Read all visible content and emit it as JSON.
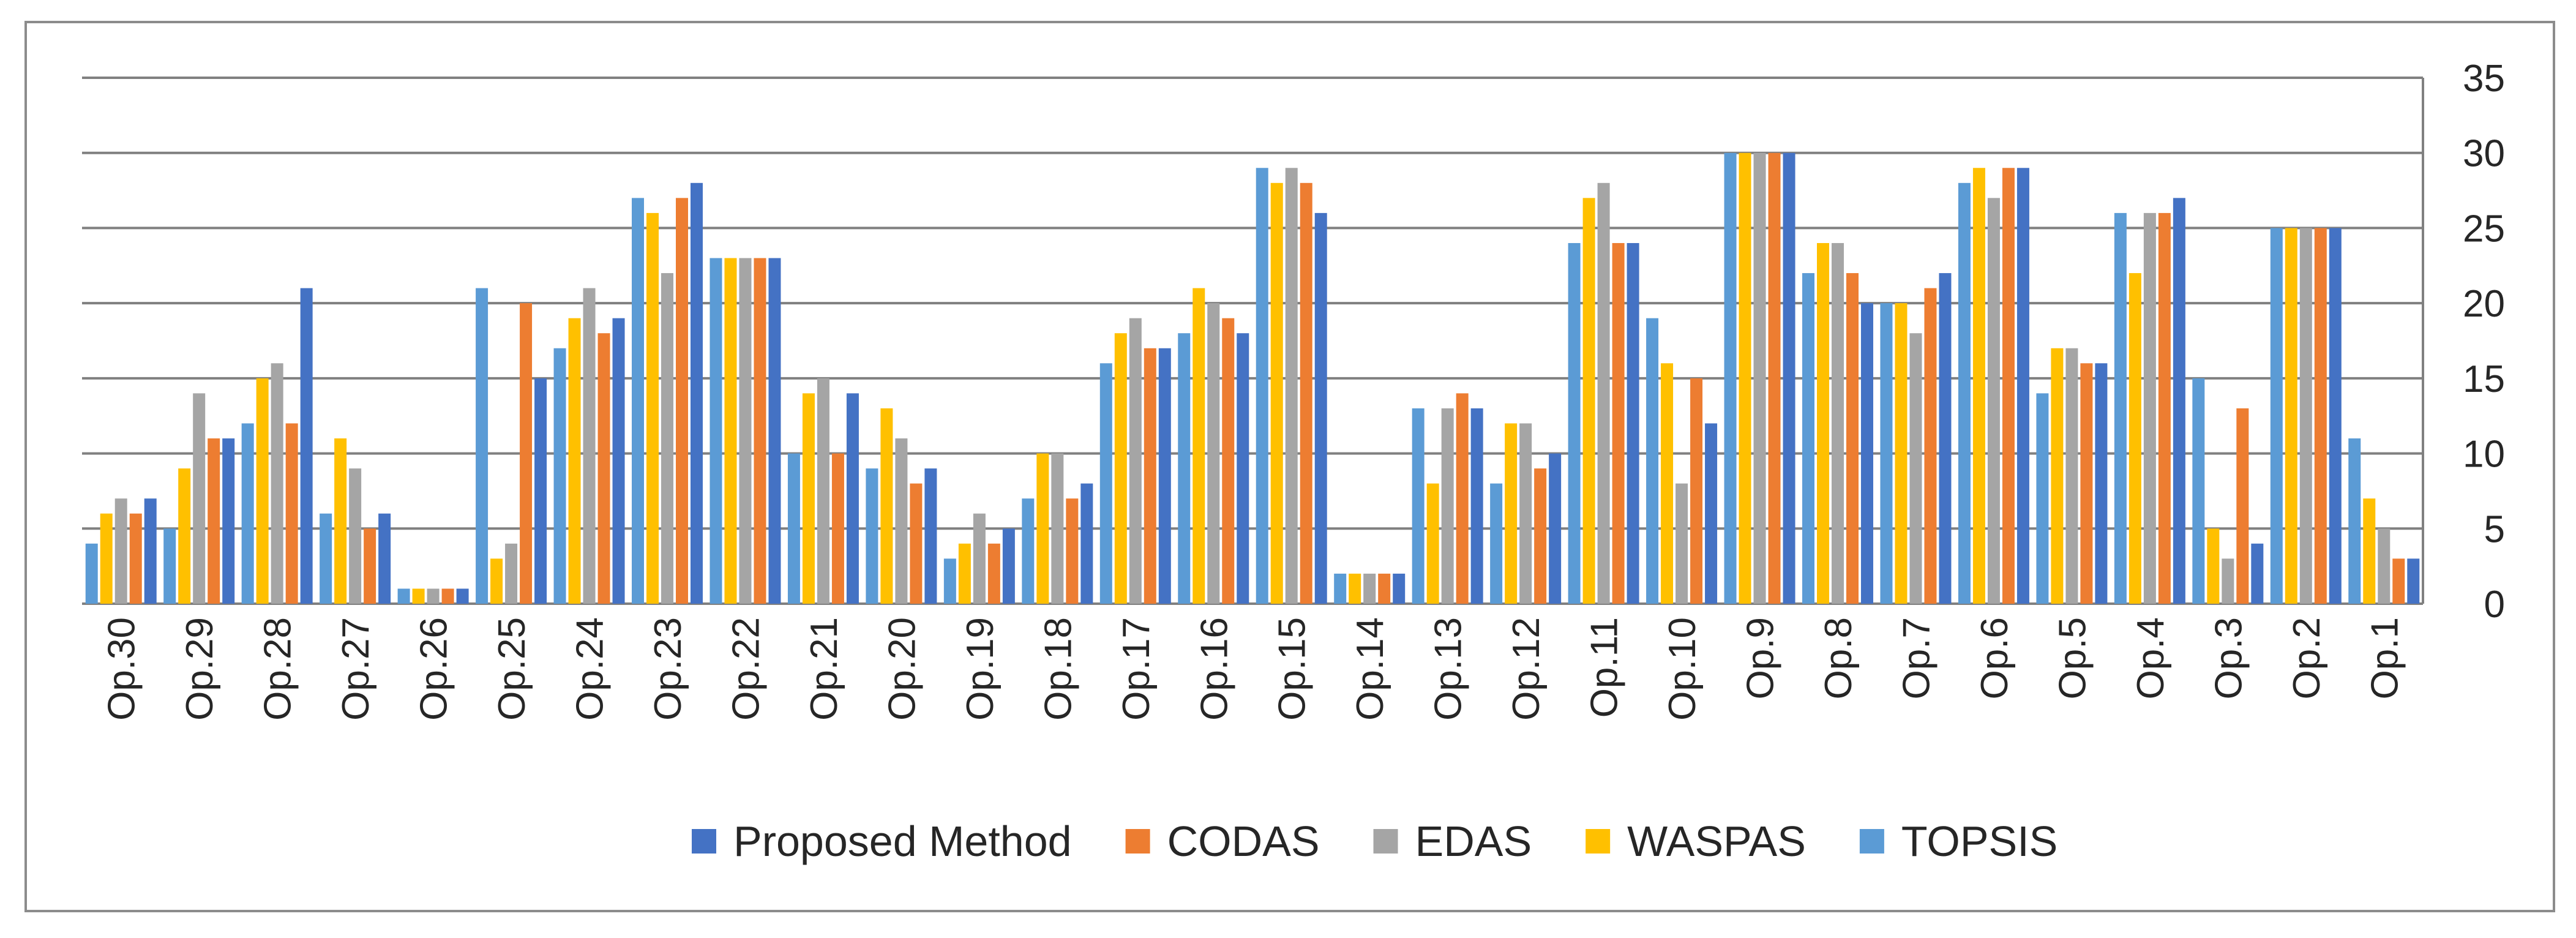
{
  "chart_data": {
    "type": "bar",
    "title": "",
    "xlabel": "",
    "ylabel": "",
    "ylim": [
      0,
      35
    ],
    "y_ticks": [
      "0",
      "5",
      "10",
      "15",
      "20",
      "25",
      "30",
      "35"
    ],
    "y_axis_side": "right",
    "grid": true,
    "legend_position": "bottom",
    "categories": [
      "Op.30",
      "Op.29",
      "Op.28",
      "Op.27",
      "Op.26",
      "Op.25",
      "Op.24",
      "Op.23",
      "Op.22",
      "Op.21",
      "Op.20",
      "Op.19",
      "Op.18",
      "Op.17",
      "Op.16",
      "Op.15",
      "Op.14",
      "Op.13",
      "Op.12",
      "Op.11",
      "Op.10",
      "Op.9",
      "Op.8",
      "Op.7",
      "Op.6",
      "Op.5",
      "Op.4",
      "Op.3",
      "Op.2",
      "Op.1"
    ],
    "series": [
      {
        "name": "TOPSIS",
        "color": "#5B9BD5",
        "values": [
          4,
          5,
          12,
          6,
          1,
          21,
          17,
          27,
          23,
          10,
          9,
          3,
          7,
          16,
          18,
          29,
          2,
          13,
          8,
          24,
          19,
          30,
          22,
          20,
          28,
          14,
          26,
          15,
          25,
          11
        ]
      },
      {
        "name": "WASPAS",
        "color": "#FFC000",
        "values": [
          6,
          9,
          15,
          11,
          1,
          3,
          19,
          26,
          23,
          14,
          13,
          4,
          10,
          18,
          21,
          28,
          2,
          8,
          12,
          27,
          16,
          30,
          24,
          20,
          29,
          17,
          22,
          5,
          25,
          7
        ]
      },
      {
        "name": "EDAS",
        "color": "#A5A5A5",
        "values": [
          7,
          14,
          16,
          9,
          1,
          4,
          21,
          22,
          23,
          15,
          11,
          6,
          10,
          19,
          20,
          29,
          2,
          13,
          12,
          28,
          8,
          30,
          24,
          18,
          27,
          17,
          26,
          3,
          25,
          5
        ]
      },
      {
        "name": "CODAS",
        "color": "#ED7D31",
        "values": [
          6,
          11,
          12,
          5,
          1,
          20,
          18,
          27,
          23,
          10,
          8,
          4,
          7,
          17,
          19,
          28,
          2,
          14,
          9,
          24,
          15,
          30,
          22,
          21,
          29,
          16,
          26,
          13,
          25,
          3
        ]
      },
      {
        "name": "Proposed Method",
        "color": "#4472C4",
        "values": [
          7,
          11,
          21,
          6,
          1,
          15,
          19,
          28,
          23,
          14,
          9,
          5,
          8,
          17,
          18,
          26,
          2,
          13,
          10,
          24,
          12,
          30,
          20,
          22,
          29,
          16,
          27,
          4,
          25,
          3
        ]
      }
    ],
    "legend": [
      "Proposed Method",
      "CODAS",
      "EDAS",
      "WASPAS",
      "TOPSIS"
    ],
    "colors": {
      "gridline": "#808080",
      "text": "#262626",
      "border": "#8c8c8c"
    }
  }
}
